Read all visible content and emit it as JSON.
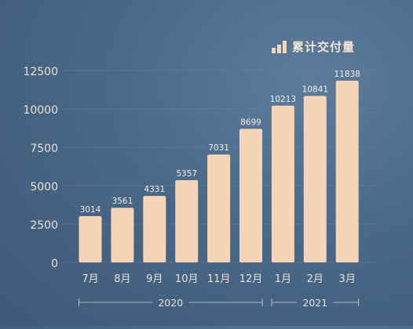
{
  "legend": {
    "label": "累计交付量",
    "icon": "bar-chart-icon"
  },
  "colors": {
    "bar": "#f6d4b8",
    "bar_label": "#f5ede2",
    "tick": "#e9e1d6",
    "grid": "#7d93a9",
    "bracket": "#c9d3dd"
  },
  "chart_data": {
    "type": "bar",
    "categories": [
      "7月",
      "8月",
      "9月",
      "10月",
      "11月",
      "12月",
      "1月",
      "2月",
      "3月"
    ],
    "values": [
      3014,
      3561,
      4331,
      5357,
      7031,
      8699,
      10213,
      10841,
      11838
    ],
    "year_groups": [
      {
        "label": "2020",
        "categories": [
          "7月",
          "8月",
          "9月",
          "10月",
          "11月",
          "12月"
        ]
      },
      {
        "label": "2021",
        "categories": [
          "1月",
          "2月",
          "3月"
        ]
      }
    ],
    "yticks": [
      0,
      2500,
      5000,
      7500,
      10000,
      12500
    ],
    "ylim": [
      0,
      12500
    ],
    "series_name": "累计交付量",
    "grid": true,
    "legend_position": "top-right"
  }
}
